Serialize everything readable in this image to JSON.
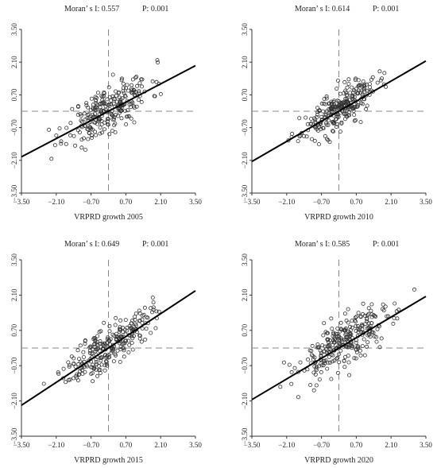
{
  "chart_data": [
    {
      "type": "scatter",
      "stat": {
        "moran": "Moran’ s I: 0.557",
        "p": "P: 0.001"
      },
      "xlabel": "VRPRD growth 2005",
      "xlim": [
        -3.5,
        3.5
      ],
      "ylim": [
        -3.5,
        3.5
      ],
      "x_ticks": [
        "−3.50",
        "−2.10",
        "−0.70",
        "0.70",
        "2.10",
        "3.50"
      ],
      "y_ticks": [
        "3.50",
        "2.10",
        "0.70",
        "−0.70",
        "−2.10",
        "−3.50"
      ],
      "x_ref": 0,
      "y_ref": 0,
      "slope": 0.557,
      "x_mean": 0.0,
      "x_sd": 0.85,
      "noise": 0.5,
      "seed": 11,
      "n_points": 260
    },
    {
      "type": "scatter",
      "stat": {
        "moran": "Moran’ s I: 0.614",
        "p": "P: 0.001"
      },
      "xlabel": "VRPRD growth 2010",
      "xlim": [
        -3.5,
        3.5
      ],
      "ylim": [
        -3.5,
        3.5
      ],
      "x_ticks": [
        "−3.50",
        "−2.10",
        "−0.70",
        "0.70",
        "2.10",
        "3.50"
      ],
      "y_ticks": [
        "3.50",
        "2.10",
        "0.70",
        "−0.70",
        "−2.10",
        "−3.50"
      ],
      "x_ref": 0,
      "y_ref": 0,
      "slope": 0.614,
      "x_mean": 0.0,
      "x_sd": 0.75,
      "noise": 0.4,
      "seed": 23,
      "n_points": 260
    },
    {
      "type": "scatter",
      "stat": {
        "moran": "Moran’ s I: 0.649",
        "p": "P: 0.001"
      },
      "xlabel": "VRPRD growth 2015",
      "xlim": [
        -3.5,
        3.5
      ],
      "ylim": [
        -3.5,
        3.5
      ],
      "x_ticks": [
        "−3.50",
        "−2.10",
        "−0.70",
        "0.70",
        "2.10",
        "3.50"
      ],
      "y_ticks": [
        "3.50",
        "2.10",
        "0.70",
        "−0.70",
        "−2.10",
        "−3.50"
      ],
      "x_ref": 0,
      "y_ref": 0,
      "slope": 0.649,
      "x_mean": 0.0,
      "x_sd": 0.85,
      "noise": 0.42,
      "seed": 37,
      "n_points": 260
    },
    {
      "type": "scatter",
      "stat": {
        "moran": "Moran’ s I: 0.585",
        "p": "P: 0.001"
      },
      "xlabel": "VRPRD growth 2020",
      "xlim": [
        -3.5,
        3.5
      ],
      "ylim": [
        -3.5,
        3.5
      ],
      "x_ticks": [
        "−3.50",
        "−2.10",
        "−0.70",
        "0.70",
        "2.10",
        "3.50"
      ],
      "y_ticks": [
        "3.50",
        "2.10",
        "0.70",
        "−0.70",
        "−2.10",
        "−3.50"
      ],
      "x_ref": 0,
      "y_ref": 0,
      "slope": 0.585,
      "x_mean": 0.3,
      "x_sd": 1.0,
      "noise": 0.5,
      "seed": 53,
      "n_points": 280
    }
  ]
}
